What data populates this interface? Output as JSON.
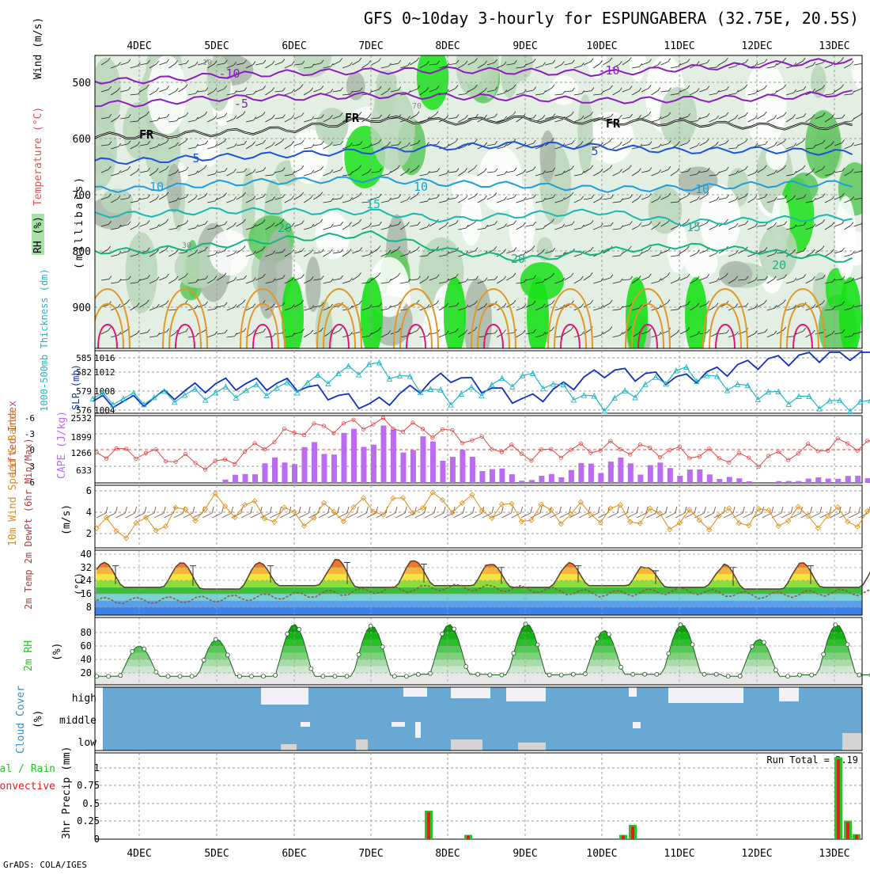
{
  "title": "GFS 0~10day 3-hourly for ESPUNGABERA (32.75E, 20.5S)",
  "footer": "GrADS: COLA/IGES",
  "colors": {
    "background": "#ffffff",
    "grid": "#9a9a9a",
    "rh_light": "#e3efe3",
    "rh_mid": "#b8d6b8",
    "rh_grey": "#a9b7a9",
    "rh_green": "#5cc85c",
    "rh_bright": "#18e018",
    "temp_purple": "#8c1cc0",
    "temp_freeze": "#000000",
    "temp_blue": "#1e50d8",
    "temp_cyan": "#1e9cdc",
    "temp_teal": "#18b8b0",
    "temp_green": "#14b482",
    "temp_orange": "#e09628",
    "temp_magenta": "#e01478",
    "slp": "#1030c0",
    "thickness": "#20b8c8",
    "lifted_index": "#e04848",
    "cape": "#bb6cf0",
    "wind": "#e08c10",
    "precip_total": "#22c822",
    "precip_conv": "#e02020",
    "cloud_blue": "#6aa8d4",
    "cloud_white": "#f4f0f8",
    "cloud_grey": "#d4d4d4"
  },
  "x_axis": {
    "day_labels": [
      "4DEC",
      "5DEC",
      "6DEC",
      "7DEC",
      "8DEC",
      "9DEC",
      "10DEC",
      "11DEC",
      "12DEC",
      "13DEC"
    ]
  },
  "panels": {
    "upper": {
      "label_wind": "Wind (m/s)",
      "label_temp": "Temperature (°C)",
      "label_rh": "RH (%)",
      "ylabel": "(millibars)",
      "y_ticks": [
        "500",
        "600",
        "700",
        "800",
        "900"
      ],
      "contour_labels": [
        "-10",
        "-5",
        "FR",
        "5",
        "10",
        "15",
        "20"
      ],
      "rh_labels": [
        "10",
        "30",
        "70"
      ]
    },
    "slp": {
      "label_thick": "1000-500mb Thickness (dm)",
      "label_slp": "SLP (mb)",
      "left_ticks": [
        "585",
        "582",
        "579",
        "576"
      ],
      "right_ticks": [
        "1016",
        "1012",
        "1008",
        "1004"
      ]
    },
    "li": {
      "label_li": "Lifted Index",
      "label_cape": "CAPE (J/kg)",
      "left_ticks": [
        "-6",
        "-3",
        "0",
        "3",
        "6"
      ],
      "right_ticks": [
        "2532",
        "1899",
        "1266",
        "633"
      ]
    },
    "wind": {
      "label": "10m Wind Speed & Barbs",
      "unit": "(m/s)",
      "ticks": [
        "6",
        "4",
        "2"
      ]
    },
    "temp": {
      "label": "2m Temp 2m DewPt (6hr Min/Max)",
      "unit": "(°C)",
      "ticks": [
        "40",
        "32",
        "24",
        "16",
        "8"
      ]
    },
    "rh": {
      "label": "2m RH",
      "unit": "(%)",
      "ticks": [
        "80",
        "60",
        "40",
        "20"
      ]
    },
    "cloud": {
      "label": "Cloud Cover",
      "unit": "(%)",
      "levels": [
        "high",
        "middle",
        "low"
      ]
    },
    "precip": {
      "label_total": "Total / Rain",
      "label_conv": "Convective",
      "ylabel": "3hr Precip (mm)",
      "ticks": [
        "1",
        "0.75",
        "0.5",
        "0.25",
        "0"
      ],
      "run_total": "Run Total = 2.19"
    }
  },
  "chart_data": [
    {
      "type": "line",
      "panel": "upper-air temperature / RH cross-section",
      "x": [
        "4DEC",
        "5DEC",
        "6DEC",
        "7DEC",
        "8DEC",
        "9DEC",
        "10DEC",
        "11DEC",
        "12DEC",
        "13DEC"
      ],
      "ylabel": "(millibars)",
      "ylim": [
        970,
        450
      ],
      "series": [
        {
          "name": "-10",
          "values": [
            497,
            488,
            483,
            480,
            478,
            481,
            484,
            475,
            469,
            462
          ]
        },
        {
          "name": "-5",
          "values": [
            538,
            528,
            527,
            523,
            525,
            528,
            533,
            530,
            528,
            520
          ]
        },
        {
          "name": "FR",
          "values": [
            595,
            590,
            583,
            565,
            570,
            565,
            570,
            572,
            578,
            578
          ]
        },
        {
          "name": "5",
          "values": [
            640,
            633,
            628,
            622,
            615,
            610,
            615,
            622,
            620,
            625
          ]
        },
        {
          "name": "10",
          "values": [
            690,
            680,
            675,
            672,
            680,
            683,
            690,
            688,
            682,
            680
          ]
        },
        {
          "name": "15",
          "values": [
            735,
            728,
            730,
            730,
            745,
            735,
            730,
            750,
            745,
            740
          ]
        },
        {
          "name": "20",
          "values": [
            800,
            790,
            778,
            770,
            800,
            815,
            800,
            790,
            800,
            815
          ]
        }
      ]
    },
    {
      "type": "line",
      "panel": "SLP and 1000-500mb thickness",
      "x": [
        "4DEC",
        "5DEC",
        "6DEC",
        "7DEC",
        "8DEC",
        "9DEC",
        "10DEC",
        "11DEC",
        "12DEC",
        "13DEC"
      ],
      "series": [
        {
          "name": "SLP (mb)",
          "values": [
            1006,
            1010,
            1010,
            1005,
            1012,
            1006,
            1013,
            1011,
            1015,
            1017
          ]
        },
        {
          "name": "1000-500mb Thickness (dm)",
          "values": [
            578,
            579,
            580,
            584,
            578,
            582,
            577,
            583,
            579,
            577
          ]
        }
      ]
    },
    {
      "type": "bar",
      "panel": "Lifted index and CAPE",
      "categories": [
        "4DEC",
        "5DEC",
        "6DEC",
        "7DEC",
        "8DEC",
        "9DEC",
        "10DEC",
        "11DEC",
        "12DEC",
        "13DEC"
      ],
      "series": [
        {
          "name": "CAPE (J/kg)",
          "values": [
            0,
            0,
            1400,
            2532,
            1600,
            100,
            1100,
            700,
            0,
            300
          ]
        },
        {
          "name": "Lifted Index",
          "values": [
            0.5,
            3,
            -3.5,
            -5,
            -3,
            1,
            -0.5,
            0.5,
            2,
            -1
          ]
        }
      ]
    },
    {
      "type": "line",
      "panel": "10m wind speed",
      "x": [
        "4DEC",
        "5DEC",
        "6DEC",
        "7DEC",
        "8DEC",
        "9DEC",
        "10DEC",
        "11DEC",
        "12DEC",
        "13DEC"
      ],
      "ylabel": "(m/s)",
      "series": [
        {
          "name": "10m Wind Speed",
          "values": [
            2.5,
            4.8,
            3.5,
            4.5,
            5.0,
            3.8,
            4.0,
            3.2,
            3.6,
            3.5
          ]
        }
      ]
    },
    {
      "type": "line",
      "panel": "2m temperature and dew point",
      "x": [
        "4DEC",
        "5DEC",
        "6DEC",
        "7DEC",
        "8DEC",
        "9DEC",
        "10DEC",
        "11DEC",
        "12DEC",
        "13DEC"
      ],
      "ylabel": "(°C)",
      "series": [
        {
          "name": "2m Temp max",
          "values": [
            35,
            35,
            35,
            37,
            36,
            34,
            35,
            32,
            34,
            35
          ]
        },
        {
          "name": "2m Temp min",
          "values": [
            20,
            19,
            21,
            20,
            21,
            20,
            21,
            20,
            19,
            20
          ]
        },
        {
          "name": "2m DewPt",
          "values": [
            12,
            13,
            15,
            18,
            20,
            19,
            16,
            18,
            15,
            17
          ]
        }
      ]
    },
    {
      "type": "area",
      "panel": "2m relative humidity",
      "x": [
        "4DEC",
        "5DEC",
        "6DEC",
        "7DEC",
        "8DEC",
        "9DEC",
        "10DEC",
        "11DEC",
        "12DEC",
        "13DEC"
      ],
      "ylabel": "(%)",
      "series": [
        {
          "name": "2m RH max",
          "values": [
            60,
            70,
            92,
            90,
            92,
            93,
            83,
            92,
            70,
            92
          ]
        },
        {
          "name": "2m RH min",
          "values": [
            15,
            15,
            15,
            15,
            18,
            17,
            18,
            18,
            15,
            17
          ]
        }
      ]
    },
    {
      "type": "bar",
      "panel": "3hr precipitation",
      "categories": [
        "7DEC 18Z",
        "8DEC 06Z",
        "10DEC 03Z",
        "10DEC 09Z",
        "13DEC 00Z",
        "13DEC 03Z",
        "13DEC 06Z"
      ],
      "ylabel": "3hr Precip (mm)",
      "ylim": [
        0,
        1.2
      ],
      "series": [
        {
          "name": "Total / Rain",
          "values": [
            0.4,
            0.06,
            0.06,
            0.2,
            1.15,
            0.26,
            0.07
          ]
        },
        {
          "name": "Convective",
          "values": [
            0.38,
            0.05,
            0.05,
            0.18,
            1.12,
            0.24,
            0.06
          ]
        }
      ]
    }
  ]
}
